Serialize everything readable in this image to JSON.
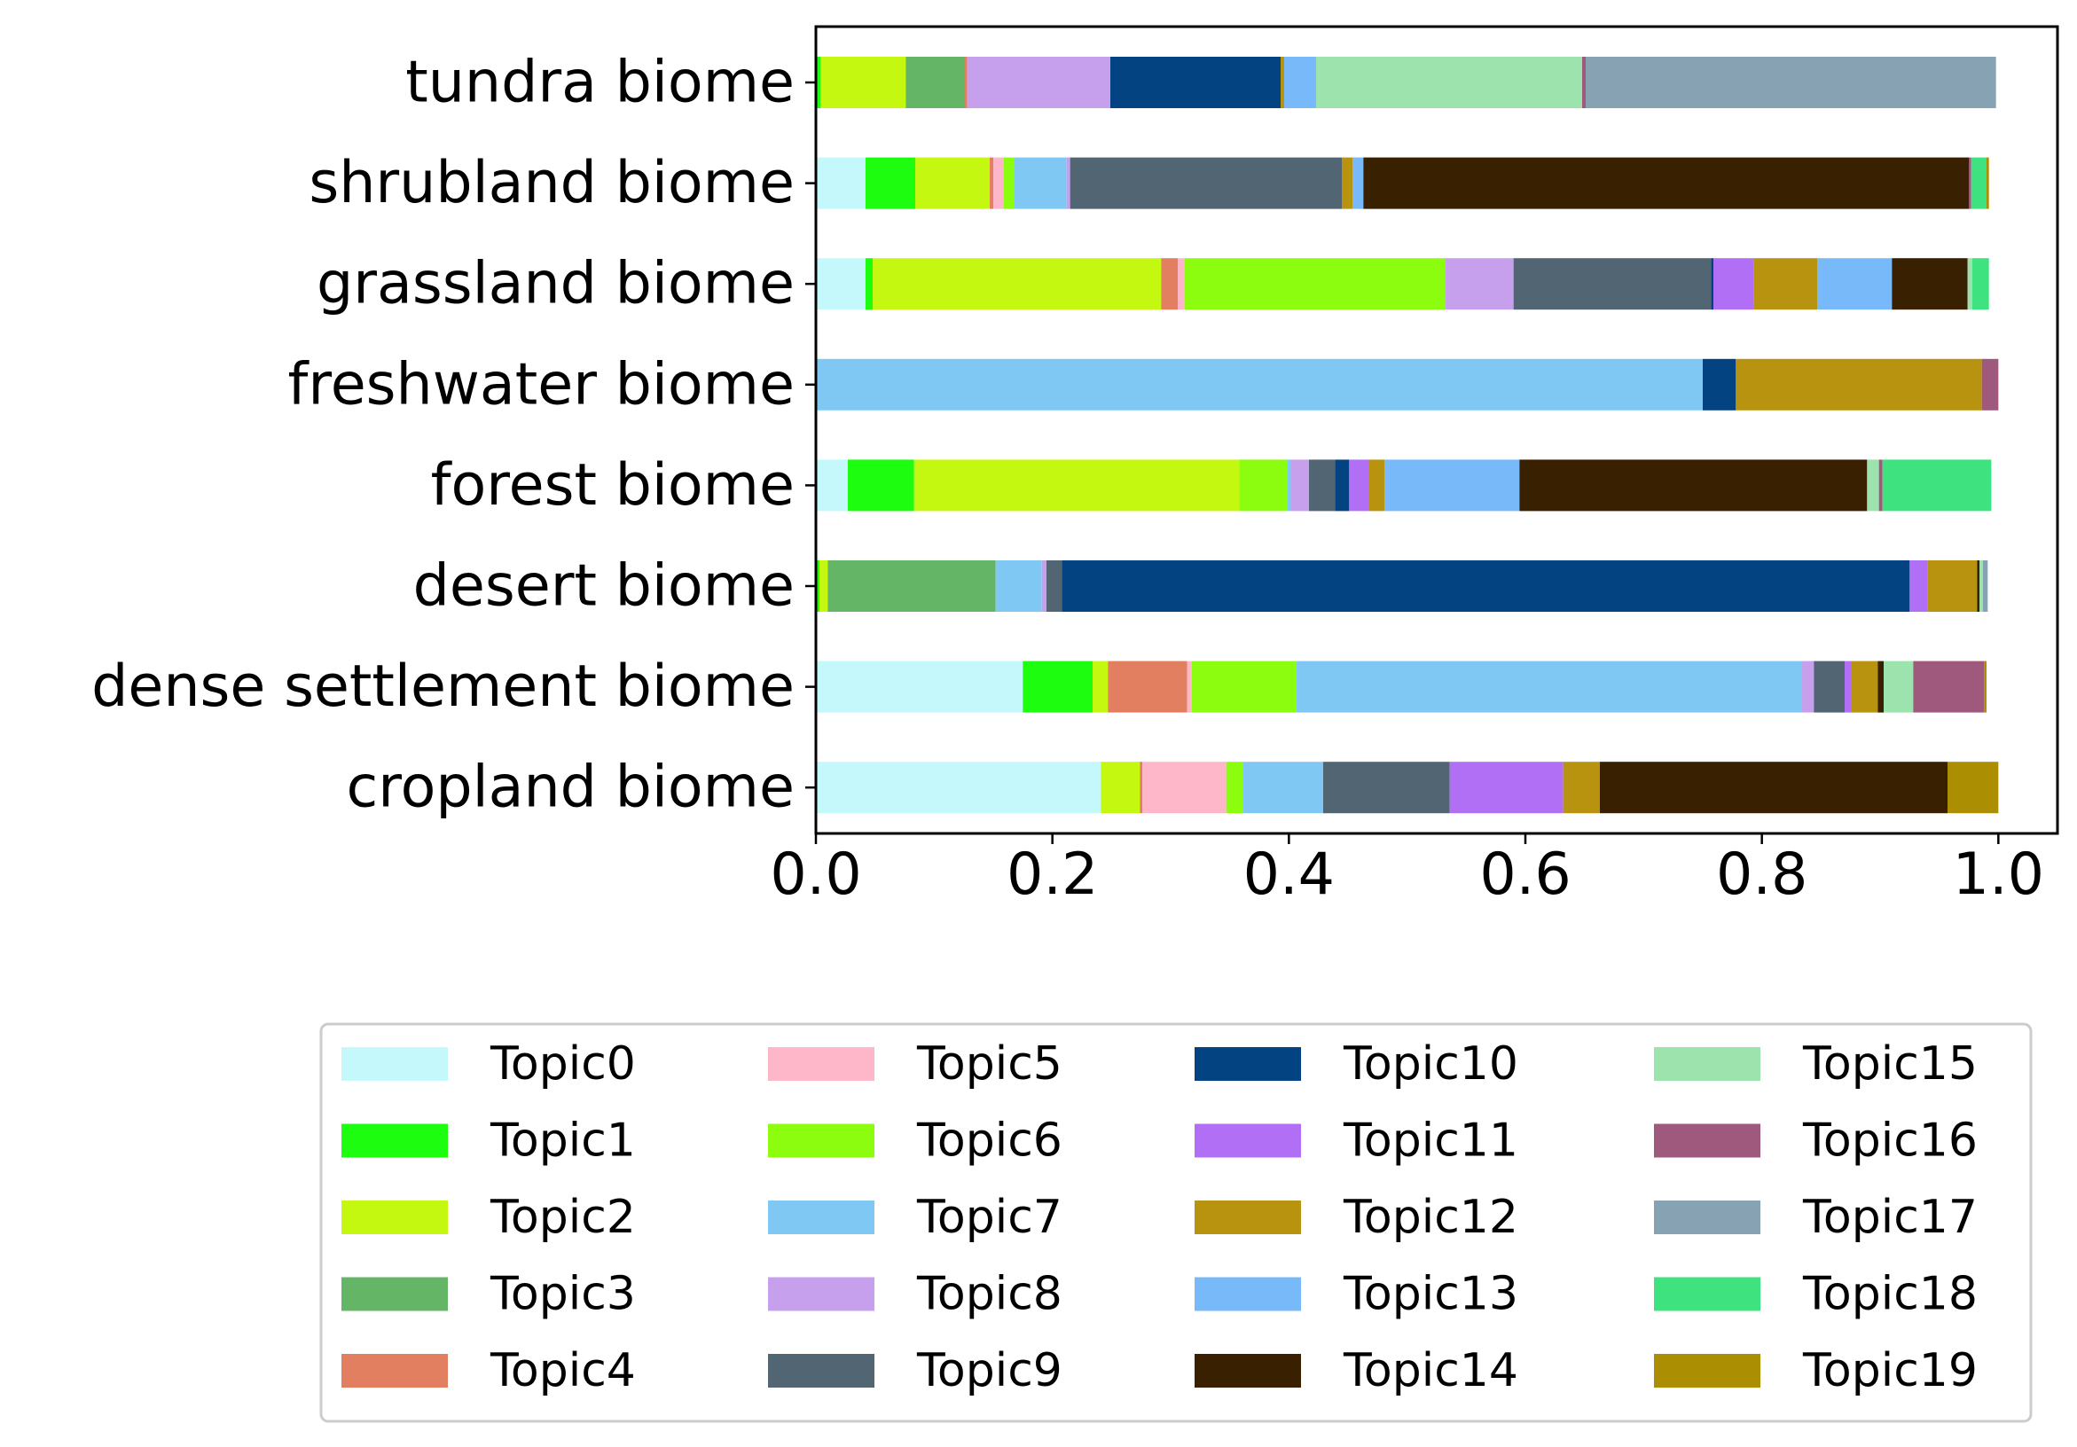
{
  "chart_data": {
    "type": "bar",
    "orientation": "horizontal",
    "stacked": true,
    "title": "",
    "xlabel": "",
    "ylabel": "",
    "xlim": [
      0,
      1.05
    ],
    "x_ticks": [
      "0.0",
      "0.2",
      "0.4",
      "0.6",
      "0.8",
      "1.0"
    ],
    "x_tick_values": [
      0,
      0.2,
      0.4,
      0.6,
      0.8,
      1.0
    ],
    "grid": false,
    "legend_position": "bottom",
    "categories": [
      "tundra biome",
      "shrubland biome",
      "grassland biome",
      "freshwater biome",
      "forest biome",
      "desert biome",
      "dense settlement biome",
      "cropland biome"
    ],
    "series": [
      {
        "name": "Topic0",
        "color": "#c5f8fb",
        "values": [
          0.0,
          0.042,
          0.042,
          0.0,
          0.027,
          0.0,
          0.175,
          0.241
        ]
      },
      {
        "name": "Topic1",
        "color": "#1cfd10",
        "values": [
          0.004,
          0.042,
          0.006,
          0.0,
          0.056,
          0.003,
          0.059,
          0.0
        ]
      },
      {
        "name": "Topic2",
        "color": "#c5f810",
        "values": [
          0.072,
          0.063,
          0.244,
          0.0,
          0.275,
          0.007,
          0.013,
          0.033
        ]
      },
      {
        "name": "Topic3",
        "color": "#65b566",
        "values": [
          0.05,
          0.0,
          0.0,
          0.0,
          0.0,
          0.142,
          0.0,
          0.0
        ]
      },
      {
        "name": "Topic4",
        "color": "#e17f60",
        "values": [
          0.002,
          0.003,
          0.014,
          0.0,
          0.0,
          0.0,
          0.067,
          0.002
        ]
      },
      {
        "name": "Topic5",
        "color": "#fdb7c9",
        "values": [
          0.0,
          0.009,
          0.006,
          0.0,
          0.0,
          0.0,
          0.004,
          0.071
        ]
      },
      {
        "name": "Topic6",
        "color": "#8dfd10",
        "values": [
          0.0,
          0.009,
          0.22,
          0.0,
          0.041,
          0.0,
          0.088,
          0.014
        ]
      },
      {
        "name": "Topic7",
        "color": "#80c8f4",
        "values": [
          0.0,
          0.044,
          0.0,
          0.75,
          0.003,
          0.039,
          0.428,
          0.068
        ]
      },
      {
        "name": "Topic8",
        "color": "#c7a0ed",
        "values": [
          0.121,
          0.003,
          0.058,
          0.0,
          0.015,
          0.004,
          0.01,
          0.0
        ]
      },
      {
        "name": "Topic9",
        "color": "#526573",
        "values": [
          0.0,
          0.23,
          0.167,
          0.0,
          0.022,
          0.013,
          0.026,
          0.107
        ]
      },
      {
        "name": "Topic10",
        "color": "#034382",
        "values": [
          0.144,
          0.0,
          0.002,
          0.028,
          0.012,
          0.717,
          0.0,
          0.0
        ]
      },
      {
        "name": "Topic11",
        "color": "#b06ff5",
        "values": [
          0.0,
          0.0,
          0.034,
          0.0,
          0.017,
          0.015,
          0.006,
          0.096
        ]
      },
      {
        "name": "Topic12",
        "color": "#b89310",
        "values": [
          0.003,
          0.009,
          0.054,
          0.208,
          0.013,
          0.042,
          0.022,
          0.031
        ]
      },
      {
        "name": "Topic13",
        "color": "#78b9fa",
        "values": [
          0.027,
          0.009,
          0.063,
          0.0,
          0.114,
          0.0,
          0.0,
          0.0
        ]
      },
      {
        "name": "Topic14",
        "color": "#382001",
        "values": [
          0.0,
          0.512,
          0.064,
          0.0,
          0.294,
          0.002,
          0.005,
          0.294
        ]
      },
      {
        "name": "Topic15",
        "color": "#9de3ad",
        "values": [
          0.225,
          0.0,
          0.004,
          0.0,
          0.01,
          0.003,
          0.025,
          0.0
        ]
      },
      {
        "name": "Topic16",
        "color": "#9f597c",
        "values": [
          0.003,
          0.002,
          0.0,
          0.014,
          0.003,
          0.0,
          0.06,
          0.0
        ]
      },
      {
        "name": "Topic17",
        "color": "#87a3b3",
        "values": [
          0.347,
          0.0,
          0.0,
          0.0,
          0.0,
          0.004,
          0.0,
          0.0
        ]
      },
      {
        "name": "Topic18",
        "color": "#3ee27e",
        "values": [
          0.0,
          0.013,
          0.014,
          0.0,
          0.092,
          0.0,
          0.0,
          0.0
        ]
      },
      {
        "name": "Topic19",
        "color": "#ac8e03",
        "values": [
          0.0,
          0.002,
          0.0,
          0.0,
          0.0,
          0.0,
          0.002,
          0.043
        ]
      }
    ]
  }
}
